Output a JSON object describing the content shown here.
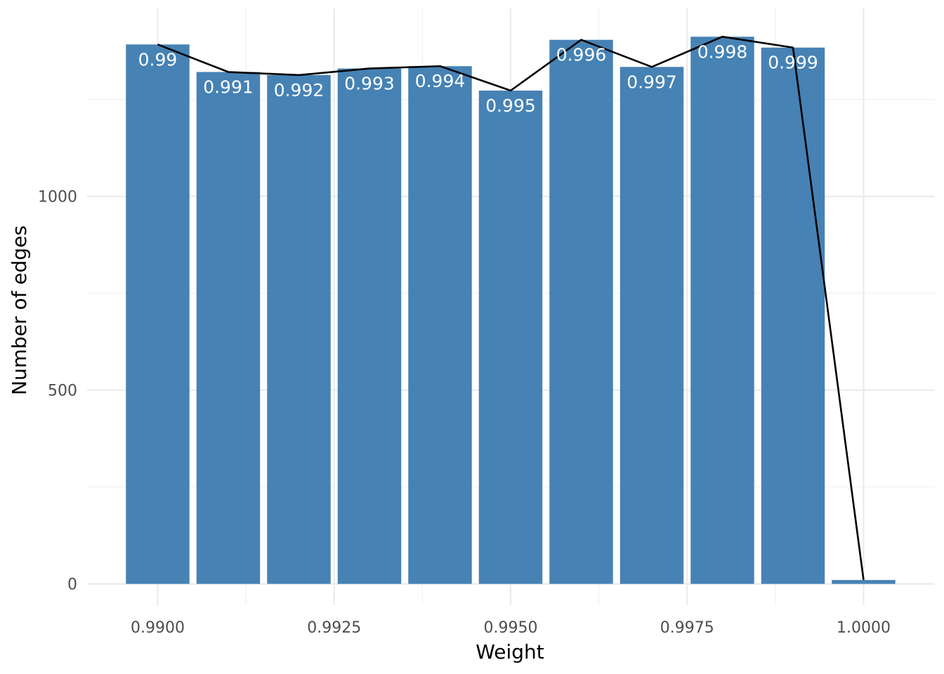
{
  "chart_data": {
    "type": "bar",
    "title": "",
    "xlabel": "Weight",
    "ylabel": "Number of edges",
    "x": [
      0.99,
      0.991,
      0.992,
      0.993,
      0.994,
      0.995,
      0.996,
      0.997,
      0.998,
      0.999,
      1.0
    ],
    "values": [
      1392,
      1321,
      1313,
      1330,
      1336,
      1273,
      1404,
      1334,
      1412,
      1384,
      10
    ],
    "bar_labels": [
      "0.99",
      "0.991",
      "0.992",
      "0.993",
      "0.994",
      "0.995",
      "0.996",
      "0.997",
      "0.998",
      "0.999",
      ""
    ],
    "line": {
      "x": [
        0.99,
        0.991,
        0.992,
        0.993,
        0.994,
        0.995,
        0.996,
        0.997,
        0.998,
        0.999,
        1.0
      ],
      "y": [
        1392,
        1321,
        1313,
        1330,
        1336,
        1273,
        1404,
        1334,
        1412,
        1384,
        10
      ],
      "color": "#000000"
    },
    "bar_width": 0.0009,
    "bar_color": "#4682b4",
    "xlim": [
      0.989,
      1.001
    ],
    "ylim": [
      -55,
      1485
    ],
    "x_ticks": [
      0.99,
      0.9925,
      0.995,
      0.9975,
      1.0
    ],
    "x_tick_labels": [
      "0.9900",
      "0.9925",
      "0.9950",
      "0.9975",
      "1.0000"
    ],
    "y_ticks": [
      0,
      500,
      1000
    ],
    "y_tick_labels": [
      "0",
      "500",
      "1000"
    ],
    "grid": true,
    "legend": "none"
  }
}
